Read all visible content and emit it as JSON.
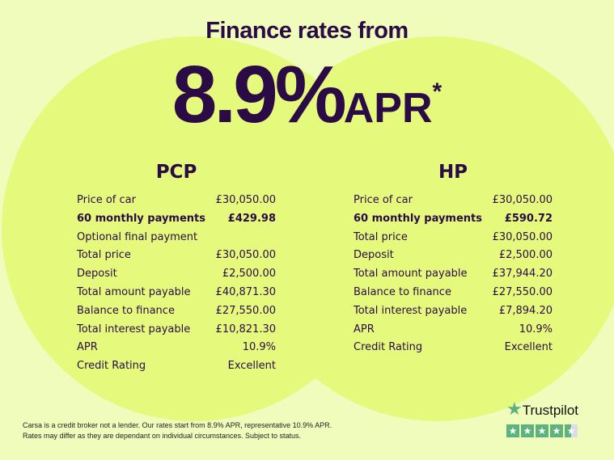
{
  "headline": {
    "title": "Finance rates from",
    "rate": "8.9%",
    "apr": "APR",
    "asterisk": "*"
  },
  "pcp": {
    "title": "PCP",
    "rows": [
      {
        "label": "Price of car",
        "value": "£30,050.00",
        "bold": false
      },
      {
        "label": "60 monthly payments",
        "value": "£429.98",
        "bold": true
      },
      {
        "label": "Optional final payment",
        "value": "",
        "bold": false
      },
      {
        "label": "Total price",
        "value": "£30,050.00",
        "bold": false
      },
      {
        "label": "Deposit",
        "value": "£2,500.00",
        "bold": false
      },
      {
        "label": "Total amount payable",
        "value": "£40,871.30",
        "bold": false
      },
      {
        "label": "Balance to finance",
        "value": "£27,550.00",
        "bold": false
      },
      {
        "label": "Total interest payable",
        "value": "£10,821.30",
        "bold": false
      },
      {
        "label": "APR",
        "value": "10.9%",
        "bold": false
      },
      {
        "label": "Credit Rating",
        "value": "Excellent",
        "bold": false
      }
    ]
  },
  "hp": {
    "title": "HP",
    "rows": [
      {
        "label": "Price of car",
        "value": "£30,050.00",
        "bold": false
      },
      {
        "label": "60 monthly payments",
        "value": "£590.72",
        "bold": true
      },
      {
        "label": "Total price",
        "value": "£30,050.00",
        "bold": false
      },
      {
        "label": "Deposit",
        "value": "£2,500.00",
        "bold": false
      },
      {
        "label": "Total amount payable",
        "value": "£37,944.20",
        "bold": false
      },
      {
        "label": "Balance to finance",
        "value": "£27,550.00",
        "bold": false
      },
      {
        "label": "Total interest payable",
        "value": "£7,894.20",
        "bold": false
      },
      {
        "label": "APR",
        "value": "10.9%",
        "bold": false
      },
      {
        "label": "Credit Rating",
        "value": "Excellent",
        "bold": false
      }
    ]
  },
  "footer": {
    "line1": "Carsa is a credit broker not a lender. Our rates start from 8.9% APR, representative 10.9% APR.",
    "line2": "Rates may differ as they are dependant on individual circumstances. Subject to status."
  },
  "trustpilot": {
    "name": "Trustpilot",
    "rating_stars": 4.5,
    "max_stars": 5,
    "color": "#5cb37d"
  },
  "colors": {
    "text": "#2b0b45",
    "background": "#f0fcbc",
    "circle": "#e5f97c"
  }
}
